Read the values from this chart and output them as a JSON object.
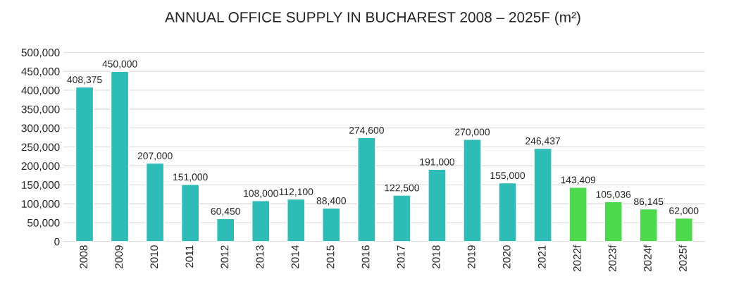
{
  "chart_data": {
    "type": "bar",
    "title": "ANNUAL OFFICE SUPPLY IN BUCHAREST 2008 – 2025F (m²)",
    "categories": [
      "2008",
      "2009",
      "2010",
      "2011",
      "2012",
      "2013",
      "2014",
      "2015",
      "2016",
      "2017",
      "2018",
      "2019",
      "2020",
      "2021",
      "2022f",
      "2023f",
      "2024f",
      "2025f"
    ],
    "values": [
      408375,
      450000,
      207000,
      151000,
      60450,
      108000,
      112100,
      88400,
      274600,
      122500,
      191000,
      270000,
      155000,
      246437,
      143409,
      105036,
      86145,
      62000
    ],
    "value_labels": [
      "408,375",
      "450,000",
      "207,000",
      "151,000",
      "60,450",
      "108,000",
      "112,100",
      "88,400",
      "274,600",
      "122,500",
      "191,000",
      "270,000",
      "155,000",
      "246,437",
      "143,409",
      "105,036",
      "86,145",
      "62,000"
    ],
    "colors": [
      "#2dbdb6",
      "#2dbdb6",
      "#2dbdb6",
      "#2dbdb6",
      "#2dbdb6",
      "#2dbdb6",
      "#2dbdb6",
      "#2dbdb6",
      "#2dbdb6",
      "#2dbdb6",
      "#2dbdb6",
      "#2dbdb6",
      "#2dbdb6",
      "#2dbdb6",
      "#4cd94c",
      "#4cd94c",
      "#4cd94c",
      "#4cd94c"
    ],
    "ylim": [
      0,
      500000
    ],
    "yticks": [
      0,
      {
        "value": 50000,
        "label": "50,000"
      },
      {
        "value": 100000,
        "label": "100,000"
      },
      {
        "value": 150000,
        "label": "150,000"
      },
      {
        "value": 200000,
        "label": "200,000"
      },
      {
        "value": 250000,
        "label": "250,000"
      },
      {
        "value": 300000,
        "label": "300,000"
      },
      {
        "value": 350000,
        "label": "350,000"
      },
      {
        "value": 400000,
        "label": "400,000"
      },
      {
        "value": 450000,
        "label": "450,000"
      },
      {
        "value": 500000,
        "label": "500,000"
      }
    ],
    "grid": "y",
    "legend": false
  }
}
